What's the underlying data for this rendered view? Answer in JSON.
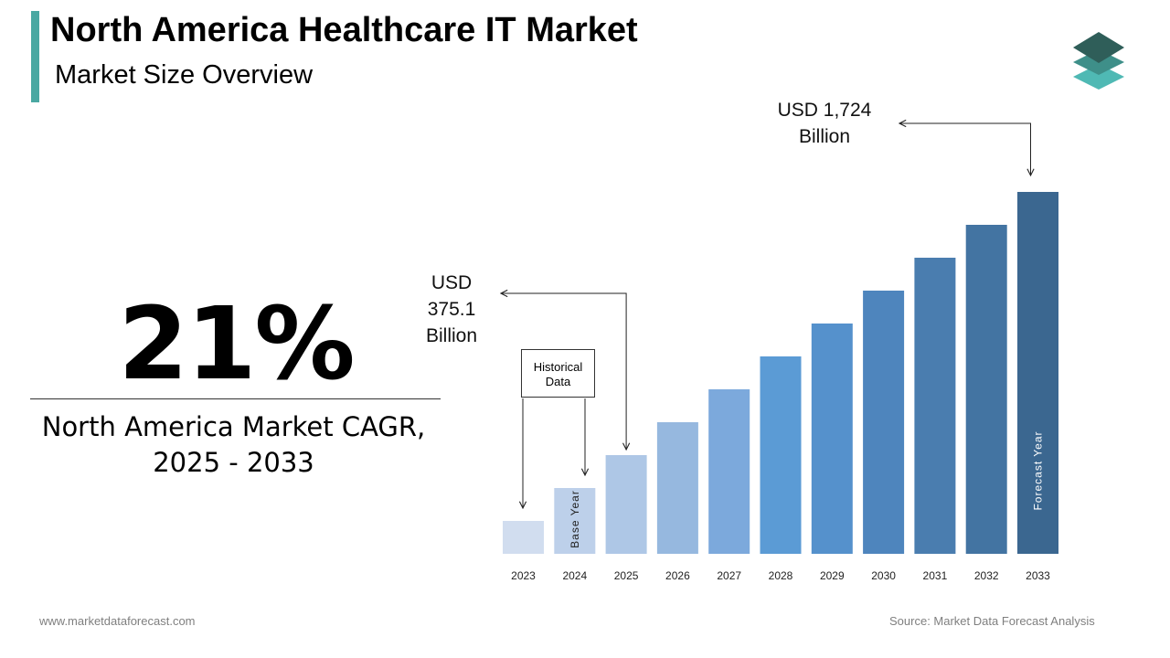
{
  "header": {
    "title": "North America Healthcare IT Market",
    "subtitle": "Market Size Overview"
  },
  "kpi": {
    "value": "21%",
    "label_line1": "North America Market CAGR,",
    "label_line2": "2025 - 2033"
  },
  "footer": {
    "website": "www.marketdataforecast.com",
    "source": "Source: Market Data Forecast Analysis"
  },
  "chart_data": {
    "type": "bar",
    "categories": [
      "2023",
      "2024",
      "2025",
      "2026",
      "2027",
      "2028",
      "2029",
      "2030",
      "2031",
      "2032",
      "2033"
    ],
    "values": [
      1,
      2,
      3,
      4,
      5,
      6,
      7,
      8,
      9,
      10,
      11
    ],
    "colors": [
      "#d1ddef",
      "#bdd0ea",
      "#aec7e6",
      "#96b8df",
      "#7ca9dc",
      "#5b9bd5",
      "#5591cc",
      "#4e85bd",
      "#4a7daf",
      "#4374a2",
      "#3b6790"
    ],
    "ylim": [
      0,
      12
    ],
    "bar_labels": {
      "2024": "Base Year",
      "2033": "Forecast Year"
    },
    "annotations": {
      "start": {
        "line1": "USD",
        "line2": "375.1",
        "line3": "Billion",
        "year": "2025"
      },
      "end": {
        "line1": "USD 1,724",
        "line2": "Billion",
        "year": "2033"
      },
      "historical": {
        "line1": "Historical",
        "line2": "Data",
        "years": [
          "2023",
          "2024"
        ]
      }
    }
  }
}
